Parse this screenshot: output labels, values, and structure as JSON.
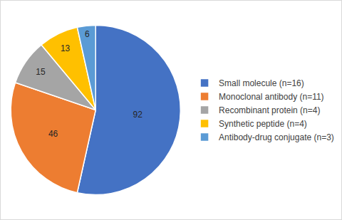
{
  "chart_data": {
    "type": "pie",
    "categories": [
      "Small molecule (n=16)",
      "Monoclonal antibody (n=11)",
      "Recombinant protein (n=4)",
      "Synthetic peptide (n=4)",
      "Antibody-drug conjugate (n=3)"
    ],
    "values": [
      92,
      46,
      15,
      13,
      6
    ],
    "colors": [
      "#4472c4",
      "#ed7d31",
      "#a5a5a5",
      "#ffc000",
      "#5b9bd5"
    ],
    "data_labels": true,
    "legend": "right"
  }
}
